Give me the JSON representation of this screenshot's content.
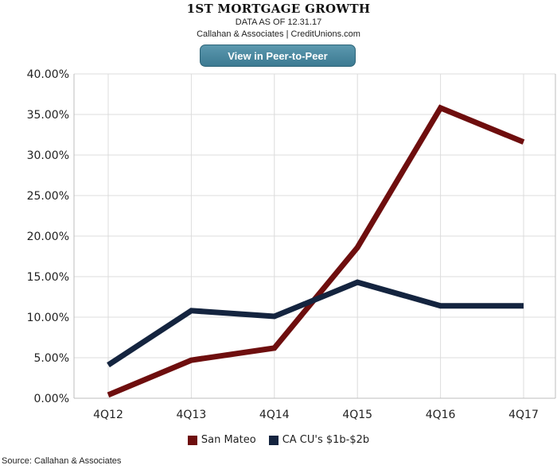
{
  "header": {
    "title": "1ST MORTGAGE GROWTH",
    "subtitle": "DATA AS OF 12.31.17",
    "source_line": "Callahan & Associates | CreditUnions.com",
    "button_label": "View in Peer-to-Peer"
  },
  "footer": {
    "source": "Source: Callahan & Associates"
  },
  "chart_data": {
    "type": "line",
    "title": "1ST MORTGAGE GROWTH",
    "xlabel": "",
    "ylabel": "",
    "categories": [
      "4Q12",
      "4Q13",
      "4Q14",
      "4Q15",
      "4Q16",
      "4Q17"
    ],
    "ylim": [
      0,
      40
    ],
    "yticks": [
      0,
      5,
      10,
      15,
      20,
      25,
      30,
      35,
      40
    ],
    "ytick_labels": [
      "0.00%",
      "5.00%",
      "10.00%",
      "15.00%",
      "20.00%",
      "25.00%",
      "30.00%",
      "35.00%",
      "40.00%"
    ],
    "grid": true,
    "legend_position": "bottom-center",
    "series": [
      {
        "name": "San Mateo",
        "color": "#6e0e0e",
        "values": [
          0.4,
          4.7,
          6.2,
          18.6,
          35.8,
          31.6
        ]
      },
      {
        "name": "CA CU's $1b-$2b",
        "color": "#14243f",
        "values": [
          4.1,
          10.8,
          10.1,
          14.3,
          11.4,
          11.4
        ]
      }
    ]
  }
}
